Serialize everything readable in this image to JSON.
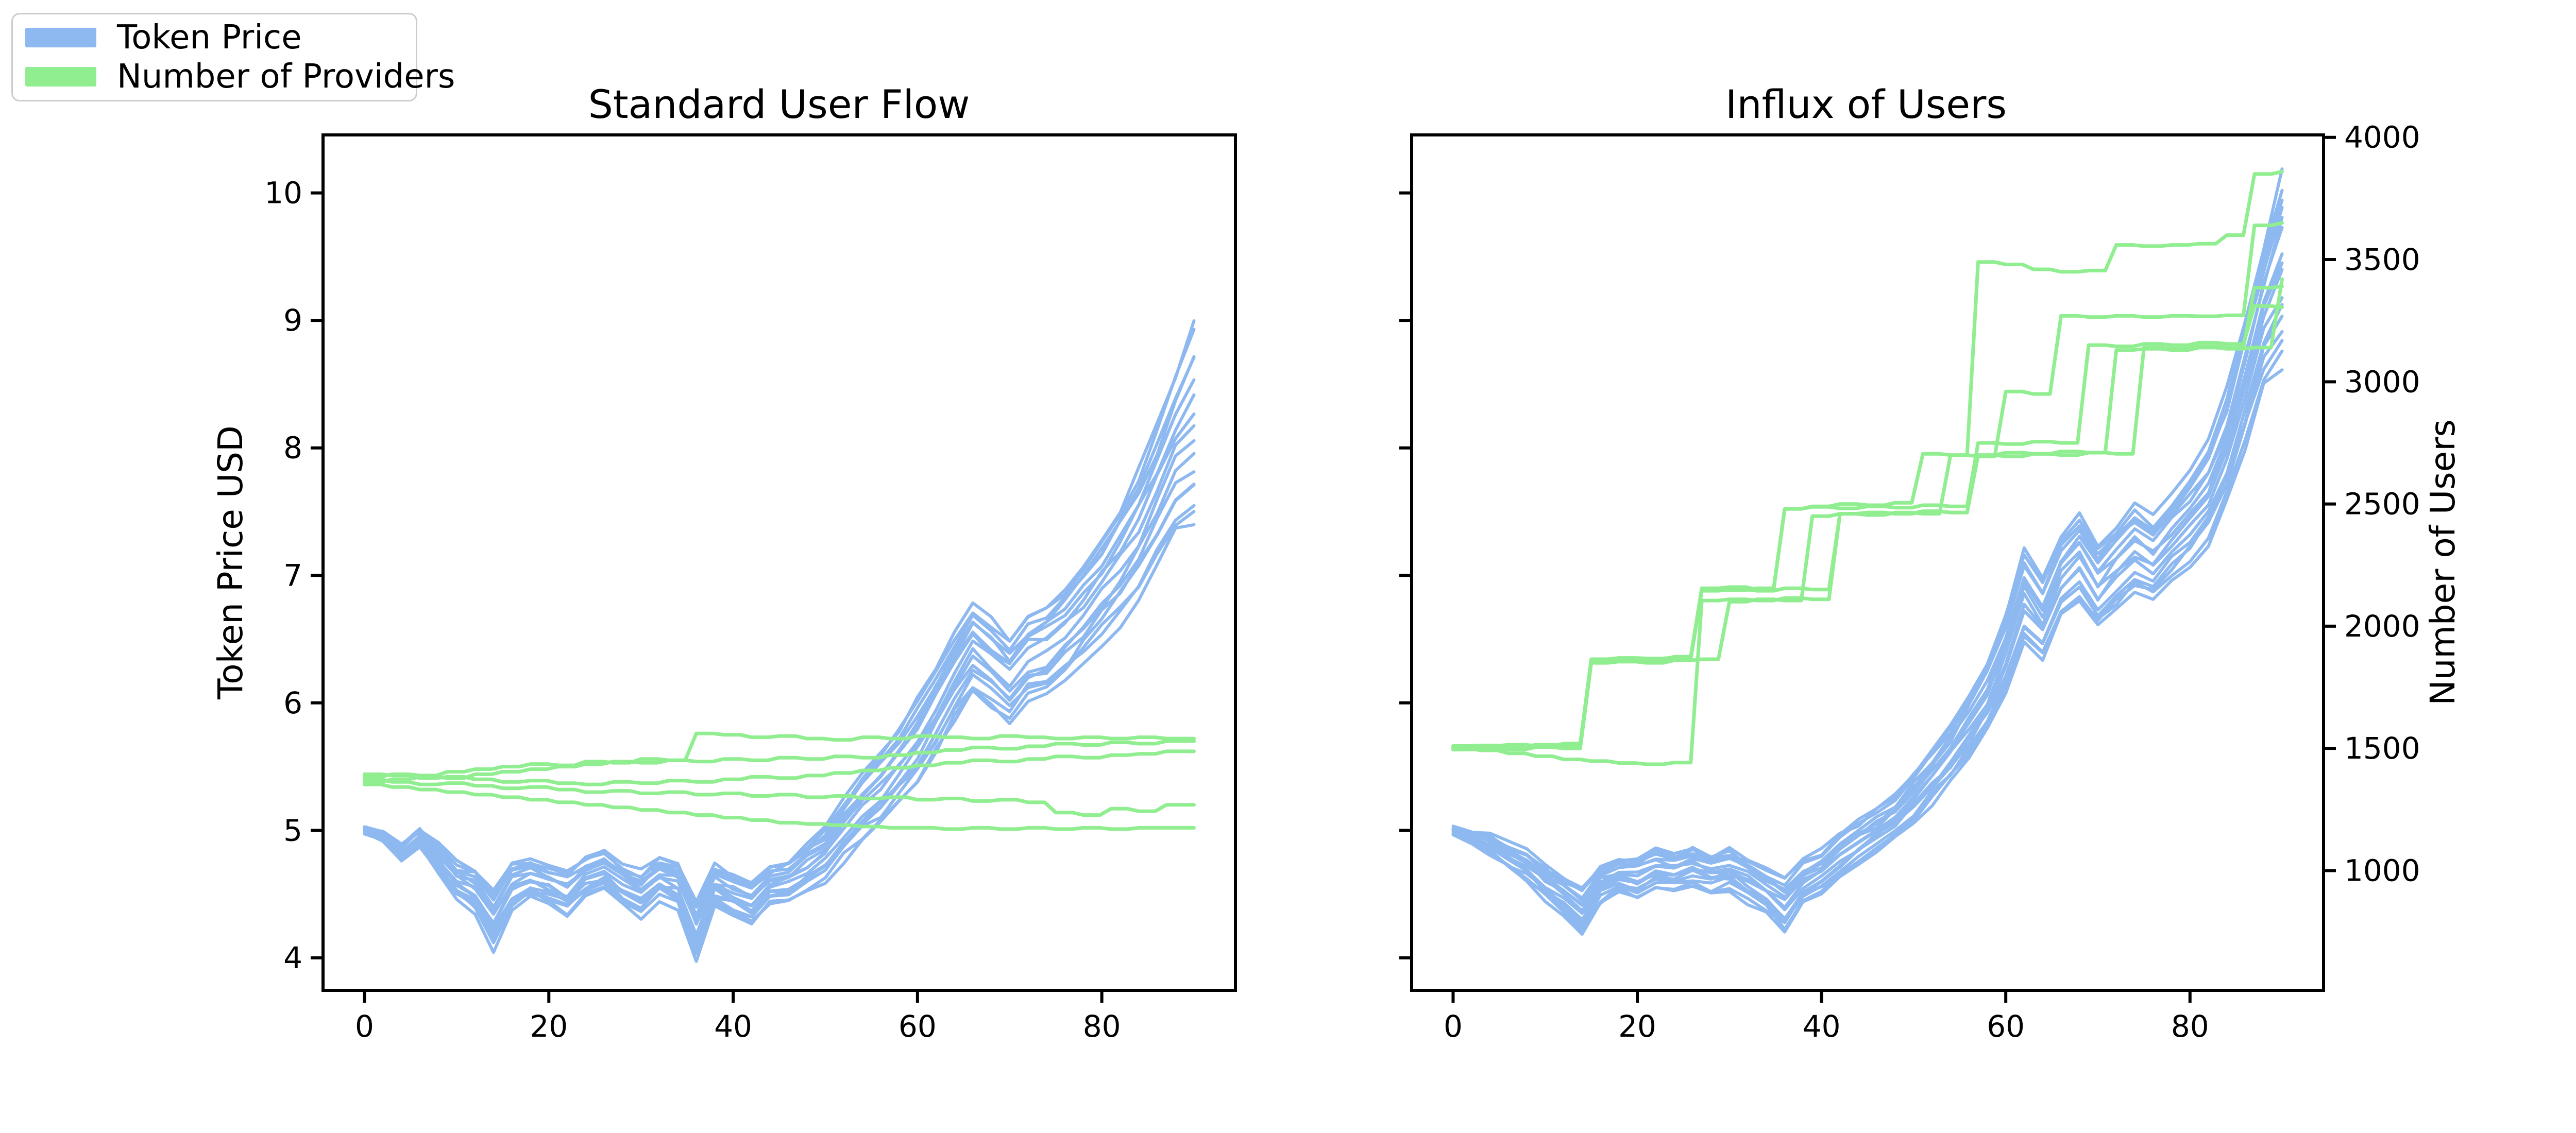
{
  "figure": {
    "background": "#ffffff"
  },
  "legend": {
    "items": [
      {
        "label": "Token Price",
        "color": "#8db8f0"
      },
      {
        "label": "Number of Providers",
        "color": "#90ee90"
      }
    ]
  },
  "colors": {
    "token_price": "#8db8f0",
    "providers": "#90ee90",
    "axis": "#000000"
  },
  "chart_data": [
    {
      "type": "line",
      "title": "Standard User Flow",
      "ylabel": "Token Price USD",
      "xlabel": "",
      "legend_position": "upper-left-outside",
      "grid": false,
      "xticks": [
        0,
        20,
        40,
        60,
        80
      ],
      "yticks": [
        4,
        5,
        6,
        7,
        8,
        9,
        10
      ],
      "xlim": [
        -4.5,
        94.5
      ],
      "ylim": [
        3.745,
        10.455
      ],
      "token_price_bundle": {
        "color": "#8db8f0",
        "n_paths": 16,
        "x_step": 2,
        "x_max": 90,
        "jitter": 0.05,
        "center": [
          5.0,
          4.95,
          4.82,
          4.93,
          4.78,
          4.6,
          4.52,
          4.3,
          4.55,
          4.62,
          4.56,
          4.5,
          4.63,
          4.7,
          4.58,
          4.5,
          4.63,
          4.58,
          4.22,
          4.56,
          4.5,
          4.44,
          4.58,
          4.62,
          4.72,
          4.82,
          5.02,
          5.18,
          5.32,
          5.5,
          5.7,
          5.95,
          6.2,
          6.42,
          6.3,
          6.18,
          6.36,
          6.42,
          6.55,
          6.72,
          6.9,
          7.1,
          7.32,
          7.62,
          7.95,
          8.15
        ],
        "spread": [
          0.02,
          0.04,
          0.06,
          0.08,
          0.1,
          0.13,
          0.16,
          0.22,
          0.18,
          0.15,
          0.15,
          0.16,
          0.16,
          0.16,
          0.16,
          0.17,
          0.16,
          0.18,
          0.24,
          0.17,
          0.16,
          0.16,
          0.15,
          0.16,
          0.17,
          0.2,
          0.24,
          0.26,
          0.28,
          0.3,
          0.33,
          0.35,
          0.36,
          0.36,
          0.35,
          0.33,
          0.33,
          0.34,
          0.36,
          0.38,
          0.4,
          0.44,
          0.5,
          0.55,
          0.62,
          0.8
        ]
      },
      "provider_paths": {
        "color": "#90ee90",
        "x_step": 3,
        "x_max": 90,
        "paths": [
          [
            5.42,
            5.44,
            5.43,
            5.46,
            5.48,
            5.5,
            5.52,
            5.51,
            5.54,
            5.53,
            5.56,
            5.55,
            5.76,
            5.75,
            5.73,
            5.74,
            5.72,
            5.71,
            5.73,
            5.72,
            5.74,
            5.73,
            5.72,
            5.74,
            5.73,
            5.72,
            5.73,
            5.72,
            5.73,
            5.72,
            5.72
          ],
          [
            5.38,
            5.4,
            5.42,
            5.41,
            5.44,
            5.46,
            5.48,
            5.5,
            5.52,
            5.54,
            5.53,
            5.55,
            5.54,
            5.56,
            5.55,
            5.57,
            5.56,
            5.58,
            5.57,
            5.59,
            5.61,
            5.63,
            5.65,
            5.64,
            5.66,
            5.68,
            5.67,
            5.69,
            5.68,
            5.7,
            5.7
          ],
          [
            5.44,
            5.43,
            5.41,
            5.42,
            5.4,
            5.38,
            5.39,
            5.37,
            5.36,
            5.38,
            5.37,
            5.39,
            5.38,
            5.4,
            5.42,
            5.41,
            5.43,
            5.45,
            5.47,
            5.49,
            5.51,
            5.53,
            5.55,
            5.54,
            5.56,
            5.58,
            5.57,
            5.59,
            5.6,
            5.62,
            5.62
          ],
          [
            5.4,
            5.38,
            5.36,
            5.37,
            5.35,
            5.33,
            5.34,
            5.32,
            5.3,
            5.31,
            5.29,
            5.3,
            5.28,
            5.29,
            5.27,
            5.28,
            5.26,
            5.27,
            5.25,
            5.26,
            5.24,
            5.25,
            5.23,
            5.24,
            5.22,
            5.14,
            5.12,
            5.17,
            5.15,
            5.2,
            5.2
          ],
          [
            5.36,
            5.34,
            5.32,
            5.3,
            5.28,
            5.26,
            5.24,
            5.22,
            5.2,
            5.18,
            5.16,
            5.14,
            5.12,
            5.1,
            5.08,
            5.06,
            5.05,
            5.04,
            5.03,
            5.02,
            5.02,
            5.01,
            5.02,
            5.01,
            5.02,
            5.01,
            5.02,
            5.01,
            5.02,
            5.02,
            5.02
          ]
        ]
      }
    },
    {
      "type": "line",
      "title": "Influx of Users",
      "right_ylabel": "Number of Users",
      "xlabel": "",
      "grid": false,
      "xticks": [
        0,
        20,
        40,
        60,
        80
      ],
      "yticks_left_unlabeled": [
        4,
        5,
        6,
        7,
        8,
        9,
        10
      ],
      "yticks_right": [
        1000,
        1500,
        2000,
        2500,
        3000,
        3500,
        4000
      ],
      "xlim": [
        -4.5,
        94.5
      ],
      "ylim_price": [
        3.745,
        10.455
      ],
      "ylim_users": [
        510,
        4010
      ],
      "token_price_bundle": {
        "color": "#8db8f0",
        "n_paths": 16,
        "x_step": 2,
        "x_max": 90,
        "jitter": 0.05,
        "center": [
          5.0,
          4.96,
          4.9,
          4.8,
          4.72,
          4.6,
          4.5,
          4.38,
          4.58,
          4.66,
          4.63,
          4.7,
          4.67,
          4.72,
          4.66,
          4.7,
          4.62,
          4.54,
          4.42,
          4.6,
          4.68,
          4.8,
          4.9,
          5.0,
          5.1,
          5.26,
          5.42,
          5.6,
          5.82,
          6.05,
          6.4,
          6.85,
          6.65,
          7.0,
          7.15,
          6.92,
          7.08,
          7.22,
          7.12,
          7.28,
          7.45,
          7.65,
          8.0,
          8.5,
          9.05,
          9.4
        ],
        "spread": [
          0.02,
          0.04,
          0.06,
          0.08,
          0.1,
          0.13,
          0.15,
          0.19,
          0.15,
          0.14,
          0.14,
          0.15,
          0.15,
          0.15,
          0.15,
          0.15,
          0.16,
          0.18,
          0.21,
          0.16,
          0.15,
          0.16,
          0.16,
          0.17,
          0.18,
          0.19,
          0.2,
          0.22,
          0.25,
          0.28,
          0.31,
          0.38,
          0.31,
          0.32,
          0.34,
          0.32,
          0.32,
          0.33,
          0.32,
          0.33,
          0.35,
          0.38,
          0.42,
          0.48,
          0.55,
          0.75
        ]
      },
      "provider_paths": {
        "color": "#90ee90",
        "x_step": 3,
        "x_max": 90,
        "paths": [
          [
            1500,
            1505,
            1512,
            1508,
            1520,
            1860,
            1868,
            1862,
            1875,
            2155,
            2160,
            2150,
            2480,
            2490,
            2500,
            2495,
            2505,
            2705,
            2700,
            3490,
            3480,
            3460,
            3450,
            3455,
            3560,
            3555,
            3560,
            3565,
            3600,
            3850,
            3860
          ],
          [
            1495,
            1500,
            1495,
            1505,
            1500,
            1850,
            1855,
            1850,
            1860,
            1865,
            2100,
            2110,
            2105,
            2450,
            2460,
            2455,
            2465,
            2460,
            2700,
            2695,
            2960,
            2950,
            3270,
            3265,
            3270,
            3265,
            3270,
            3268,
            3272,
            3640,
            3650
          ],
          [
            1505,
            1510,
            1515,
            1510,
            1505,
            1855,
            1860,
            1855,
            1865,
            2145,
            2150,
            2145,
            2155,
            2150,
            2460,
            2465,
            2460,
            2470,
            2465,
            2700,
            2710,
            2705,
            2715,
            2710,
            3130,
            3135,
            3130,
            3140,
            3135,
            3140,
            3420
          ],
          [
            1500,
            1492,
            1480,
            1468,
            1455,
            1448,
            1440,
            1435,
            1442,
            2105,
            2110,
            2105,
            2115,
            2110,
            2460,
            2465,
            2460,
            2470,
            2465,
            2700,
            2695,
            2705,
            2700,
            2710,
            2705,
            3140,
            3135,
            3145,
            3140,
            3385,
            3390
          ],
          [
            1510,
            1512,
            1508,
            1515,
            1512,
            1865,
            1870,
            1868,
            1872,
            2150,
            2148,
            2155,
            2480,
            2488,
            2482,
            2490,
            2485,
            2495,
            2490,
            2750,
            2745,
            2755,
            2750,
            3150,
            3145,
            3155,
            3150,
            3160,
            3155,
            3310,
            3305
          ]
        ]
      }
    }
  ]
}
